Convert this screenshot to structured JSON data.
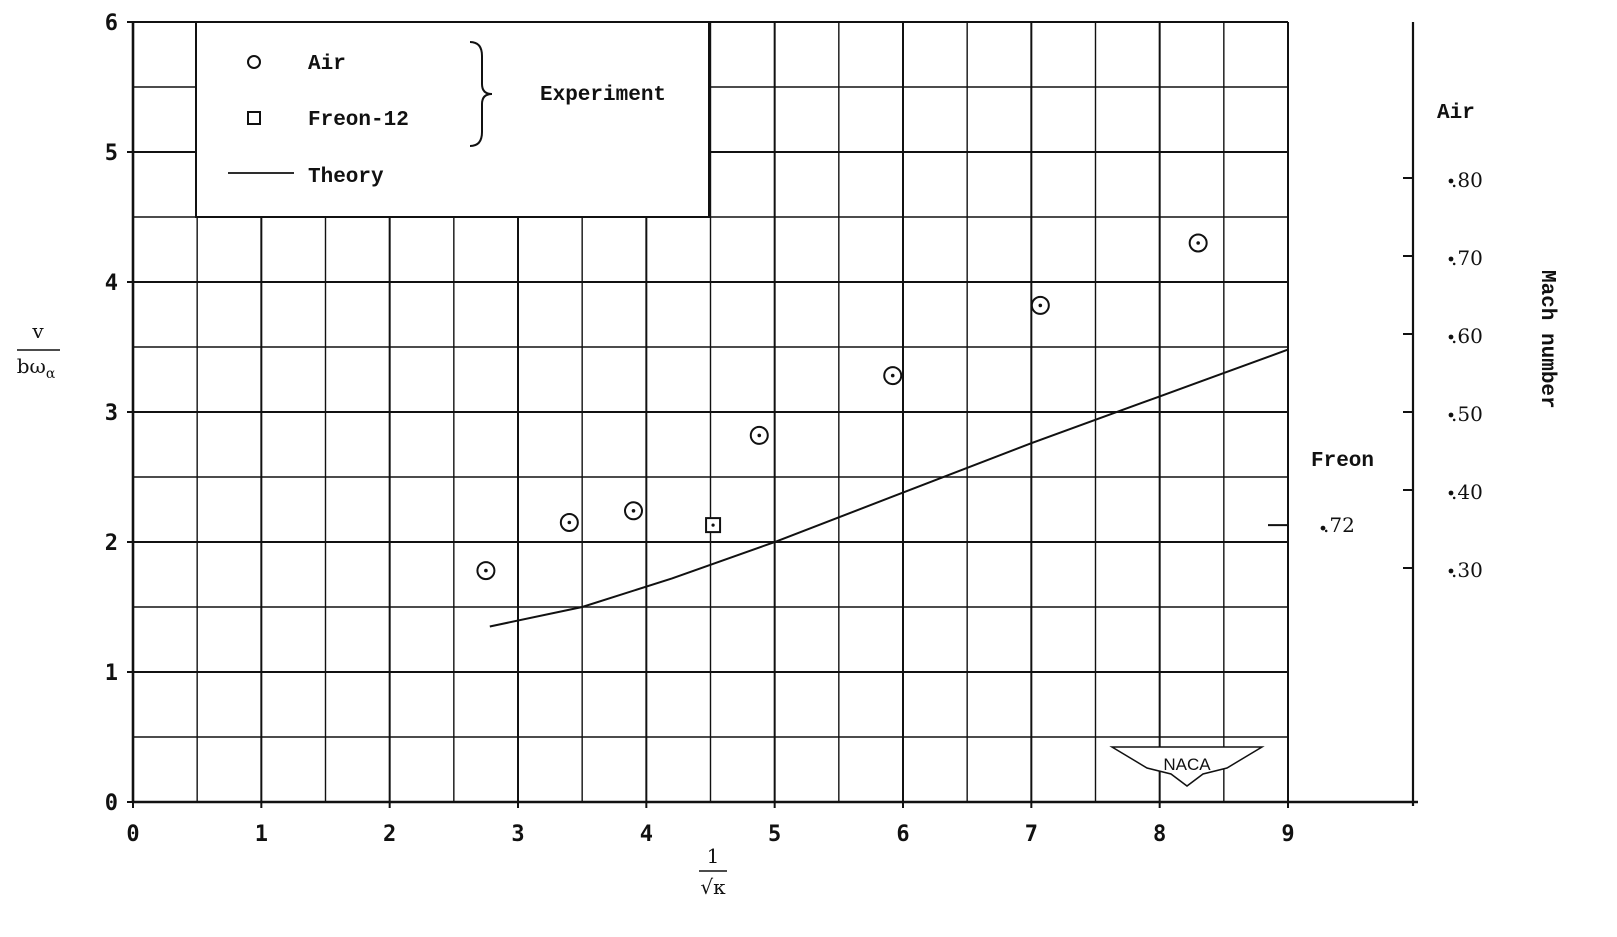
{
  "chart_data": {
    "type": "scatter",
    "xlim": [
      0,
      9
    ],
    "ylim": [
      0,
      6
    ],
    "x_ticks": [
      "0",
      "1",
      "2",
      "3",
      "4",
      "5",
      "6",
      "7",
      "8",
      "9"
    ],
    "y_ticks": [
      "0",
      "1",
      "2",
      "3",
      "4",
      "5",
      "6"
    ],
    "xlabel_num": "1",
    "xlabel_den": "√κ",
    "ylabel_num": "v",
    "ylabel_den": "bω",
    "ylabel_sub": "α",
    "grid": true,
    "legend": {
      "placement": "top-left",
      "air_label": "Air",
      "freon_label": "Freon-12",
      "theory_label": "Theory",
      "group_label": "Experiment"
    },
    "series": [
      {
        "name": "Air",
        "marker": "circle-dot",
        "points": [
          [
            2.75,
            1.78
          ],
          [
            3.4,
            2.15
          ],
          [
            3.9,
            2.24
          ],
          [
            4.88,
            2.82
          ],
          [
            5.92,
            3.28
          ],
          [
            7.07,
            3.82
          ],
          [
            8.3,
            4.3
          ]
        ]
      },
      {
        "name": "Freon-12",
        "marker": "square-dot",
        "points": [
          [
            4.52,
            2.13
          ]
        ]
      },
      {
        "name": "Theory",
        "marker": "line",
        "points": [
          [
            2.78,
            1.35
          ],
          [
            3.5,
            1.5
          ],
          [
            4.2,
            1.72
          ],
          [
            5.0,
            2.0
          ],
          [
            6.0,
            2.38
          ],
          [
            7.0,
            2.76
          ],
          [
            8.0,
            3.12
          ],
          [
            9.0,
            3.48
          ]
        ]
      }
    ],
    "right_axis": {
      "title": "Mach number",
      "air_label": "Air",
      "air_ticks": [
        {
          "label": ".80",
          "y": 4.8
        },
        {
          "label": ".70",
          "y": 4.2
        },
        {
          "label": ".60",
          "y": 3.6
        },
        {
          "label": ".50",
          "y": 3.0
        },
        {
          "label": ".40",
          "y": 2.4
        },
        {
          "label": ".30",
          "y": 1.8
        }
      ],
      "freon_label": "Freon",
      "freon_tick": {
        "label": ".72",
        "y": 2.13
      }
    },
    "logo_text": "NACA"
  }
}
